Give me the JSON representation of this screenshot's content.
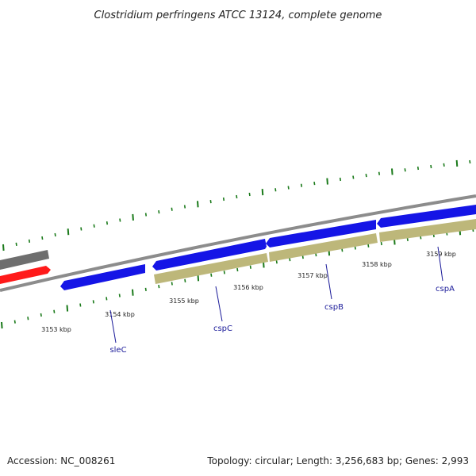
{
  "title": "Clostridium perfringens ATCC 13124, complete genome",
  "footer": {
    "accession": "Accession: NC_008261",
    "summary": "Topology: circular; Length: 3,256,683 bp; Genes: 2,993"
  },
  "colors": {
    "backbone": "#8c8c8c",
    "forward_gene": "#1515e6",
    "reverse_gene": "#bdb77a",
    "grey_gene": "#6e6e6e",
    "red_gene": "#ff1a1a",
    "tick": "#1a7a1a",
    "gene_label": "#1a1a99"
  },
  "ticks": {
    "labels": [
      "3153 kbp",
      "3154 kbp",
      "3155 kbp",
      "3156 kbp",
      "3157 kbp",
      "3158 kbp",
      "3159 kbp"
    ]
  },
  "genes": [
    {
      "name": "sleC"
    },
    {
      "name": "cspC"
    },
    {
      "name": "cspB"
    },
    {
      "name": "cspA"
    }
  ]
}
